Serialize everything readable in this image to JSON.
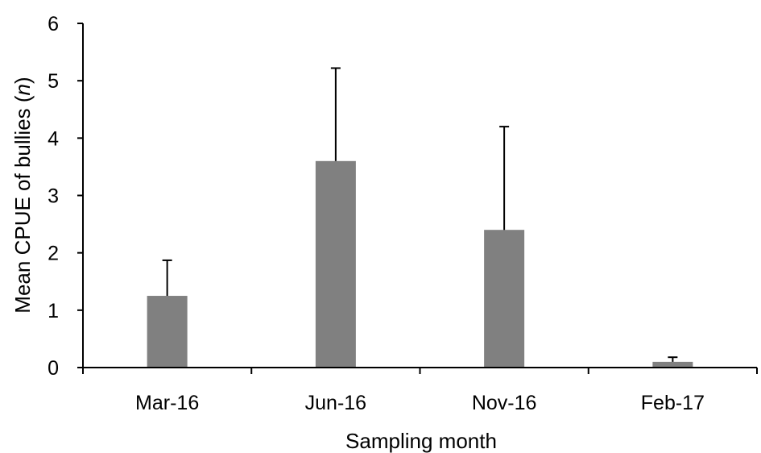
{
  "chart_data": {
    "type": "bar",
    "categories": [
      "Mar-16",
      "Jun-16",
      "Nov-16",
      "Feb-17"
    ],
    "values": [
      1.25,
      3.6,
      2.4,
      0.1
    ],
    "error_upper": [
      1.87,
      5.22,
      4.2,
      0.18
    ],
    "title": "",
    "xlabel": "Sampling month",
    "ylabel_prefix": "Mean CPUE of bullies (",
    "ylabel_italic": "n",
    "ylabel_suffix": ")",
    "ylim": [
      0,
      6
    ],
    "yticks": [
      0,
      1,
      2,
      3,
      4,
      5,
      6
    ],
    "grid": false,
    "legend": "none",
    "bar_color": "#808080"
  }
}
